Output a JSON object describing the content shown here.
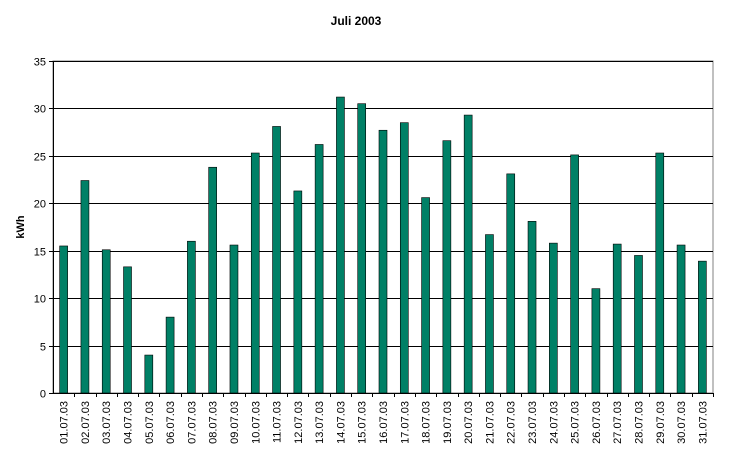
{
  "chart_data": {
    "type": "bar",
    "title": "Juli 2003",
    "xlabel": "",
    "ylabel": "kWh",
    "ylim": [
      0,
      35
    ],
    "yticks": [
      0,
      5,
      10,
      15,
      20,
      25,
      30,
      35
    ],
    "grid": true,
    "legend": "none",
    "bar_color": "#008066",
    "categories": [
      "01.07.03",
      "02.07.03",
      "03.07.03",
      "04.07.03",
      "05.07.03",
      "06.07.03",
      "07.07.03",
      "08.07.03",
      "09.07.03",
      "10.07.03",
      "11.07.03",
      "12.07.03",
      "13.07.03",
      "14.07.03",
      "15.07.03",
      "16.07.03",
      "17.07.03",
      "18.07.03",
      "19.07.03",
      "20.07.03",
      "21.07.03",
      "22.07.03",
      "23.07.03",
      "24.07.03",
      "25.07.03",
      "26.07.03",
      "27.07.03",
      "28.07.03",
      "29.07.03",
      "30.07.03",
      "31.07.03"
    ],
    "values": [
      15.5,
      22.4,
      15.1,
      13.3,
      4.0,
      8.0,
      16.0,
      23.8,
      15.6,
      25.3,
      28.1,
      21.3,
      26.2,
      31.2,
      30.5,
      27.7,
      28.5,
      20.6,
      26.6,
      29.3,
      16.7,
      23.1,
      18.1,
      15.8,
      25.1,
      11.0,
      15.7,
      14.5,
      25.3,
      15.6,
      13.9
    ]
  }
}
